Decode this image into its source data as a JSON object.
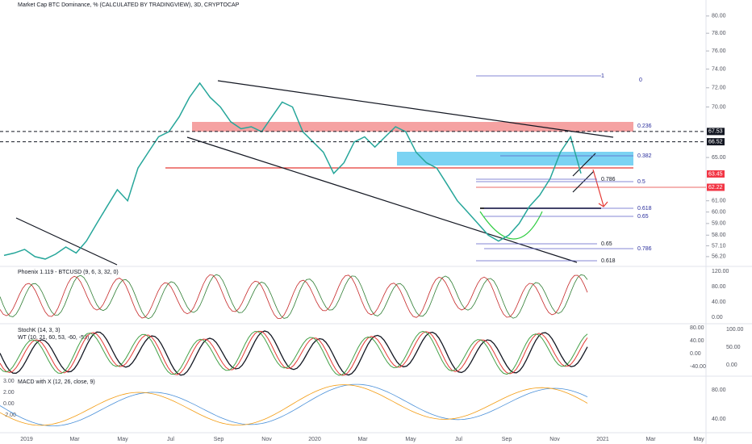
{
  "header": "Market Cap BTC Dominance, % (CALCULATED BY TRADINGVIEW), 3D, CRYPTOCAP",
  "chart_data": {
    "type": "line",
    "log": true,
    "color": "#26a69a",
    "values": [
      56.3,
      56.5,
      56.8,
      56.2,
      56.0,
      56.4,
      57.0,
      56.5,
      57.5,
      59.0,
      60.5,
      62.0,
      61.0,
      64.0,
      65.5,
      67.0,
      67.5,
      69.0,
      71.0,
      72.5,
      71.0,
      70.0,
      68.5,
      67.8,
      68.0,
      67.5,
      69.0,
      70.5,
      70.0,
      67.5,
      66.5,
      65.5,
      63.5,
      64.5,
      66.5,
      67.0,
      66.0,
      67.0,
      68.0,
      67.5,
      65.5,
      64.5,
      64.0,
      62.5,
      61.0,
      60.0,
      59.0,
      58.0,
      57.5,
      58.0,
      59.0,
      60.5,
      61.5,
      63.0,
      65.5,
      67.0,
      63.5
    ],
    "ylim": [
      55.4,
      81.9
    ],
    "yticks": [
      {
        "value": 80,
        "label": "80.00"
      },
      {
        "value": 78,
        "label": "78.00"
      },
      {
        "value": 76,
        "label": "76.00"
      },
      {
        "value": 74,
        "label": "74.00"
      },
      {
        "value": 72,
        "label": "72.00"
      },
      {
        "value": 70,
        "label": "70.00"
      },
      {
        "value": 65,
        "label": "65.00"
      },
      {
        "value": 61,
        "label": "61.00"
      },
      {
        "value": 60,
        "label": "60.00"
      },
      {
        "value": 59,
        "label": "59.00"
      },
      {
        "value": 58,
        "label": "58.00"
      },
      {
        "value": 57.1,
        "label": "57.10"
      },
      {
        "value": 56.2,
        "label": "56.20"
      }
    ],
    "price_tags": [
      {
        "value": 67.53,
        "color": "#131722"
      },
      {
        "value": 66.52,
        "color": "#131722"
      },
      {
        "value": 63.45,
        "color": "#f23645"
      },
      {
        "value": 62.22,
        "color": "#f23645"
      }
    ]
  },
  "fib_labels": [
    "1",
    "0",
    "0.236",
    "0.382",
    "0.5",
    "0.786",
    "0.618",
    "0.65",
    "0.65",
    "0.786",
    "0.618"
  ],
  "panes": {
    "phoenix": {
      "title": "Phoenix 1.119 - BTCUSD (9, 6, 3, 32, 0)",
      "axis": [
        "120.00",
        "80.00",
        "40.00",
        "0.00"
      ]
    },
    "stoch": {
      "title": "StochK (14, 3, 3)",
      "subtitle": "WT (10, 21, 60, 53, -60, -53)",
      "axis": [
        "100.00",
        "50.00",
        "0.00"
      ],
      "inner_axis": [
        "80.00",
        "40.00",
        "0.00",
        "-40.00"
      ]
    },
    "macd": {
      "title": "MACD with X (12, 26, close, 9)",
      "left_axis": [
        "3.00",
        "2.00",
        "0.00",
        "-2.00"
      ],
      "axis": [
        "80.00",
        "40.00"
      ]
    }
  },
  "time_axis": [
    "2019",
    "Mar",
    "May",
    "Jul",
    "Sep",
    "Nov",
    "2020",
    "Mar",
    "May",
    "Jul",
    "Sep",
    "Nov",
    "2021",
    "Mar",
    "May"
  ]
}
